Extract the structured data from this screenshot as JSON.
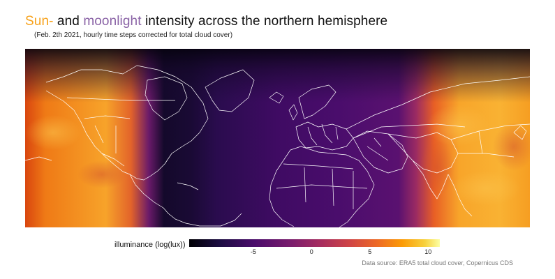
{
  "title": {
    "part_sun": "Sun-",
    "part_and": " and ",
    "part_moon": "moonlight",
    "part_rest": " intensity across the northern hemisphere",
    "sun_color": "#f7a21b",
    "moon_color": "#8a63a6"
  },
  "subtitle": "(Feb. 2th 2021, hourly time steps corrected for total cloud cover)",
  "legend": {
    "label": "illuminance (log(lux))",
    "palette": "inferno",
    "ticks": [
      {
        "label": "-5",
        "value": -5
      },
      {
        "label": "0",
        "value": 0
      },
      {
        "label": "5",
        "value": 5
      },
      {
        "label": "10",
        "value": 10
      }
    ],
    "range": [
      -10.5,
      11
    ]
  },
  "source": "Data source: ERA5 total cloud cover, Copernicus CDS"
}
